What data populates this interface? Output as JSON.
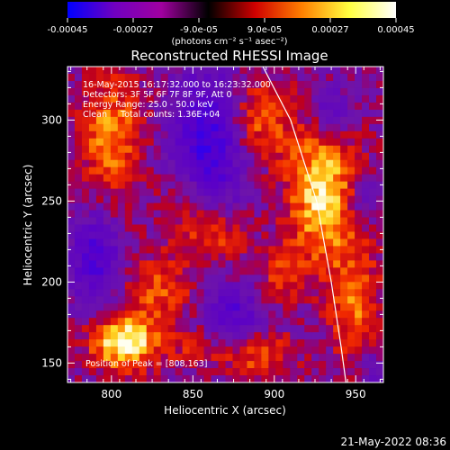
{
  "chart_data": {
    "type": "heatmap",
    "title": "Reconstructed RHESSI Image",
    "xlabel": "Heliocentric X (arcsec)",
    "ylabel": "Heliocentric Y (arcsec)",
    "xlim": [
      773,
      967
    ],
    "ylim": [
      138,
      333
    ],
    "x_ticks": [
      800,
      850,
      900,
      950
    ],
    "y_ticks": [
      150,
      200,
      250,
      300
    ],
    "colorbar": {
      "ticks": [
        "-0.00045",
        "-0.00027",
        "-9.0e-05",
        "9.0e-05",
        "0.00027",
        "0.00045"
      ],
      "tick_values": [
        -0.00045,
        -0.00027,
        -9e-05,
        9e-05,
        0.00027,
        0.00045
      ],
      "range": [
        -0.00045,
        0.00045
      ],
      "unit_text": "(photons cm⁻² s⁻¹ asec⁻²)",
      "colormap": [
        "#0000ff",
        "#7000c0",
        "#a000a0",
        "#000000",
        "#d00000",
        "#ff8000",
        "#ffff40",
        "#ffffff"
      ]
    },
    "info_lines": [
      "16-May-2015 16:17:32.000 to 16:23:32.000",
      "Detectors: 3F 5F 6F 7F 8F 9F, Att 0",
      "Energy Range: 25.0 - 50.0 keV",
      "Clean     Total counts: 1.36E+04"
    ],
    "peak_label": "Position of Peak = [808,163]",
    "peak_position": [
      808,
      163
    ],
    "limb_points": [
      [
        893,
        333
      ],
      [
        910,
        300
      ],
      [
        926,
        250
      ],
      [
        935,
        200
      ],
      [
        941,
        160
      ],
      [
        944,
        138
      ]
    ],
    "sources": [
      {
        "x": 808,
        "y": 163,
        "sx": 14,
        "sy": 12,
        "amp": 1.0
      },
      {
        "x": 930,
        "y": 255,
        "sx": 15,
        "sy": 30,
        "amp": 0.85
      },
      {
        "x": 800,
        "y": 290,
        "sx": 14,
        "sy": 26,
        "amp": 0.6
      },
      {
        "x": 950,
        "y": 185,
        "sx": 11,
        "sy": 28,
        "amp": 0.5
      },
      {
        "x": 860,
        "y": 230,
        "sx": 16,
        "sy": 12,
        "amp": 0.55
      },
      {
        "x": 890,
        "y": 300,
        "sx": 14,
        "sy": 18,
        "amp": 0.55
      },
      {
        "x": 830,
        "y": 195,
        "sx": 14,
        "sy": 14,
        "amp": 0.45
      },
      {
        "x": 890,
        "y": 155,
        "sx": 16,
        "sy": 10,
        "amp": 0.45
      },
      {
        "x": 905,
        "y": 205,
        "sx": 10,
        "sy": 12,
        "amp": 0.35
      },
      {
        "x": 845,
        "y": 255,
        "sx": 10,
        "sy": 10,
        "amp": 0.35
      },
      {
        "x": 850,
        "y": 160,
        "sx": 12,
        "sy": 8,
        "amp": 0.25
      }
    ],
    "negative_regions": [
      {
        "x": 860,
        "y": 285,
        "sx": 16,
        "sy": 32,
        "amp": -0.8
      },
      {
        "x": 790,
        "y": 215,
        "sx": 10,
        "sy": 20,
        "amp": -0.65
      },
      {
        "x": 875,
        "y": 180,
        "sx": 12,
        "sy": 12,
        "amp": -0.55
      },
      {
        "x": 935,
        "y": 305,
        "sx": 10,
        "sy": 12,
        "amp": -0.45
      },
      {
        "x": 955,
        "y": 250,
        "sx": 8,
        "sy": 12,
        "amp": -0.4
      },
      {
        "x": 960,
        "y": 145,
        "sx": 8,
        "sy": 10,
        "amp": -0.35
      }
    ],
    "grid": false
  },
  "timestamp": "21-May-2022 08:36"
}
